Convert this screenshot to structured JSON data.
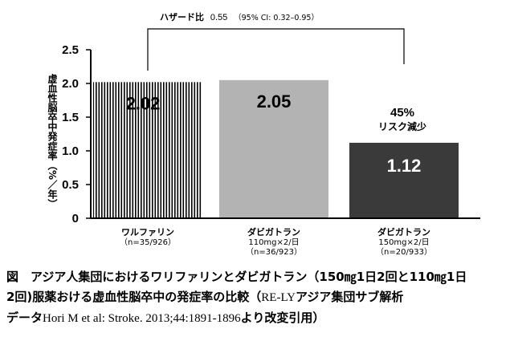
{
  "chart_data": {
    "type": "bar",
    "categories": [
      [
        "ワルファリン",
        "（n=35/926）"
      ],
      [
        "ダビガトラン",
        "110mg×2/日",
        "（n=36/923）"
      ],
      [
        "ダビガトラン",
        "150mg×2/日",
        "（n=20/933）"
      ]
    ],
    "values": [
      2.02,
      2.05,
      1.12
    ],
    "value_labels": [
      "2.02",
      "2.05",
      "1.12"
    ],
    "ylabel": "虚血性脳卒中発症率（%／年）",
    "ylim": [
      0,
      2.5
    ],
    "yticks": [
      "0",
      "0.5",
      "1.0",
      "1.5",
      "2.0",
      "2.5"
    ],
    "grid": false,
    "bar_styles": [
      {
        "fill": "hatched",
        "color": "#000000"
      },
      {
        "fill": "solid",
        "color": "#b3b3b3"
      },
      {
        "fill": "solid",
        "color": "#3a3a3a"
      }
    ],
    "annotations": {
      "hazard_label": "ハザード比",
      "hazard_value": "0.55",
      "hazard_ci": "（95% CI: 0.32–0.95）",
      "risk_pct": "45%",
      "risk_text": "リスク減少"
    }
  },
  "caption": {
    "line1": "図　アジア人集団におけるワリファリンとダビガトラン（150㎎1日2回と110㎎1日",
    "line2a": "2回)服薬おける虚血性脳卒中の発症率の比較（",
    "line2b": "RE-LY",
    "line2c": "アジア集団サブ解析",
    "line3a": "データ",
    "line3b": "Hori M et al: Stroke. 2013;44:1891-1896",
    "line3c": "より改変引用）"
  }
}
